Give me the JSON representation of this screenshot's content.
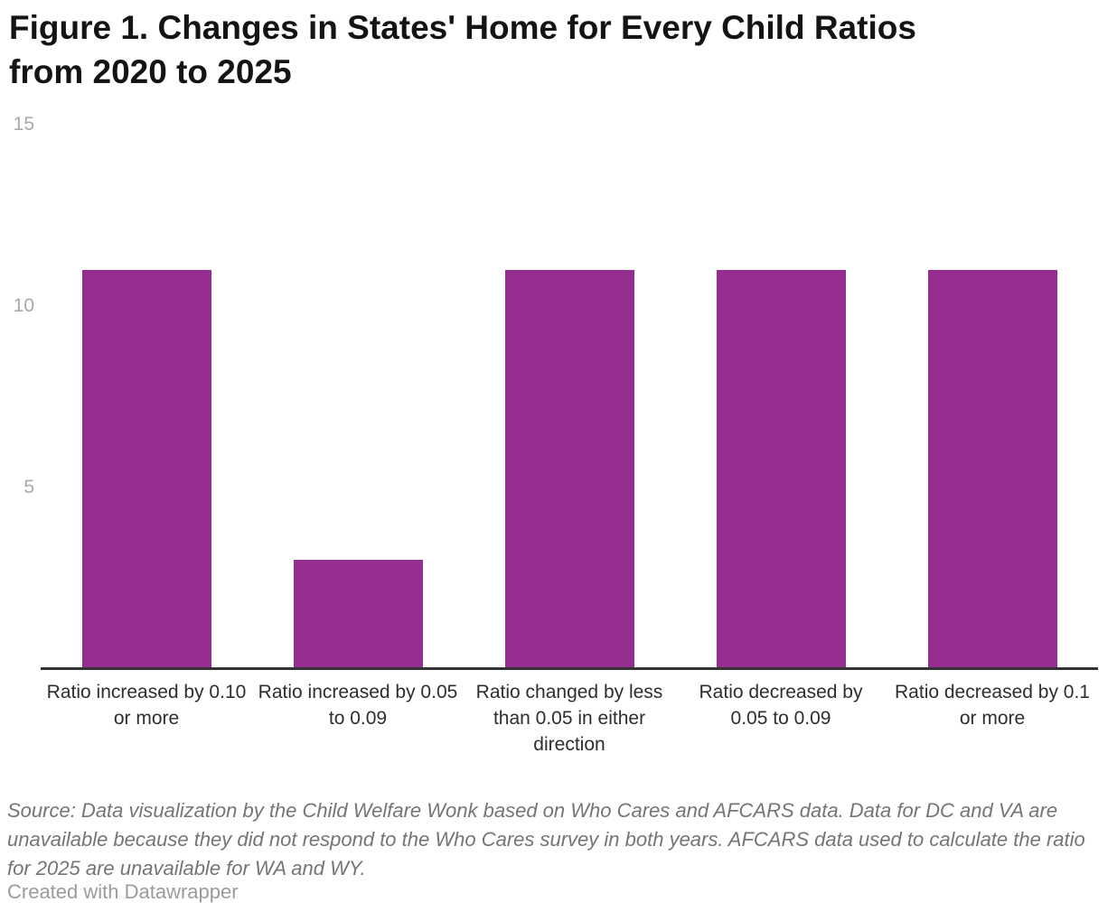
{
  "header": {
    "title_line1": "Figure 1. Changes in States' Home for Every Child Ratios",
    "title_line2": "from 2020 to 2025"
  },
  "chart_data": {
    "type": "bar",
    "title": "Figure 1. Changes in States' Home for Every Child Ratios from 2020 to 2025",
    "categories": [
      "Ratio increased by 0.10 or more",
      "Ratio increased by 0.05 to 0.09",
      "Ratio changed by less than 0.05 in either direction",
      "Ratio decreased by 0.05 to 0.09",
      "Ratio decreased by 0.1 or more"
    ],
    "values": [
      11,
      3,
      11,
      11,
      11
    ],
    "xlabel": "",
    "ylabel": "",
    "ylim": [
      0,
      15
    ],
    "yticks": [
      5,
      10,
      15
    ],
    "grid": false,
    "legend_position": "none",
    "bar_color": "#962d90",
    "axis_line_color": "#333333"
  },
  "footer": {
    "source_text": "Source: Data visualization by the Child Welfare Wonk based on Who Cares and AFCARS data. Data for DC and VA are unavailable because they did not respond to the Who Cares survey in both years. AFCARS data used to calculate the ratio for 2025 are unavailable for WA and WY.",
    "credit": "Created with Datawrapper"
  }
}
